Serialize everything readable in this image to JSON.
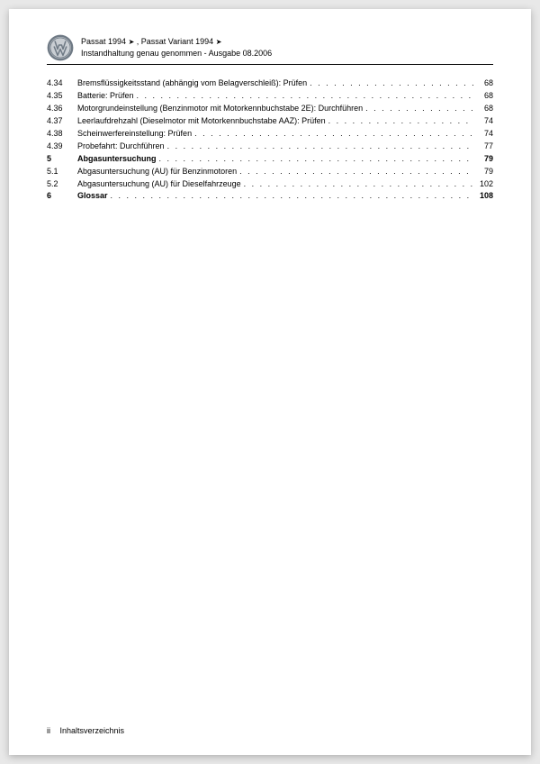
{
  "header": {
    "line1_a": "Passat 1994",
    "line1_b": ", Passat Variant 1994",
    "arrow": "➤",
    "line2": "Instandhaltung genau genommen - Ausgabe 08.2006"
  },
  "toc": [
    {
      "num": "4.34",
      "title": "Bremsflüssigkeitsstand (abhängig vom Belagverschleiß): Prüfen",
      "page": "68",
      "bold": false
    },
    {
      "num": "4.35",
      "title": "Batterie: Prüfen",
      "page": "68",
      "bold": false
    },
    {
      "num": "4.36",
      "title": "Motorgrundeinstellung (Benzinmotor mit Motorkennbuchstabe 2E): Durchführen",
      "page": "68",
      "bold": false
    },
    {
      "num": "4.37",
      "title": "Leerlaufdrehzahl (Dieselmotor mit Motorkennbuchstabe AAZ): Prüfen",
      "page": "74",
      "bold": false
    },
    {
      "num": "4.38",
      "title": "Scheinwerfereinstellung: Prüfen",
      "page": "74",
      "bold": false
    },
    {
      "num": "4.39",
      "title": "Probefahrt: Durchführen",
      "page": "77",
      "bold": false
    },
    {
      "num": "5",
      "title": "Abgasuntersuchung",
      "page": "79",
      "bold": true
    },
    {
      "num": "5.1",
      "title": "Abgasuntersuchung (AU) für Benzinmotoren",
      "page": "79",
      "bold": false
    },
    {
      "num": "5.2",
      "title": "Abgasuntersuchung (AU) für Dieselfahrzeuge",
      "page": "102",
      "bold": false
    },
    {
      "num": "6",
      "title": "Glossar",
      "page": "108",
      "bold": true
    }
  ],
  "footer": {
    "page_num": "ii",
    "label": "Inhaltsverzeichnis"
  },
  "colors": {
    "page_bg": "#ffffff",
    "body_bg": "#e8e8e8",
    "text": "#000000",
    "logo_ring": "#6f7a85",
    "logo_face": "#c9ced3"
  }
}
